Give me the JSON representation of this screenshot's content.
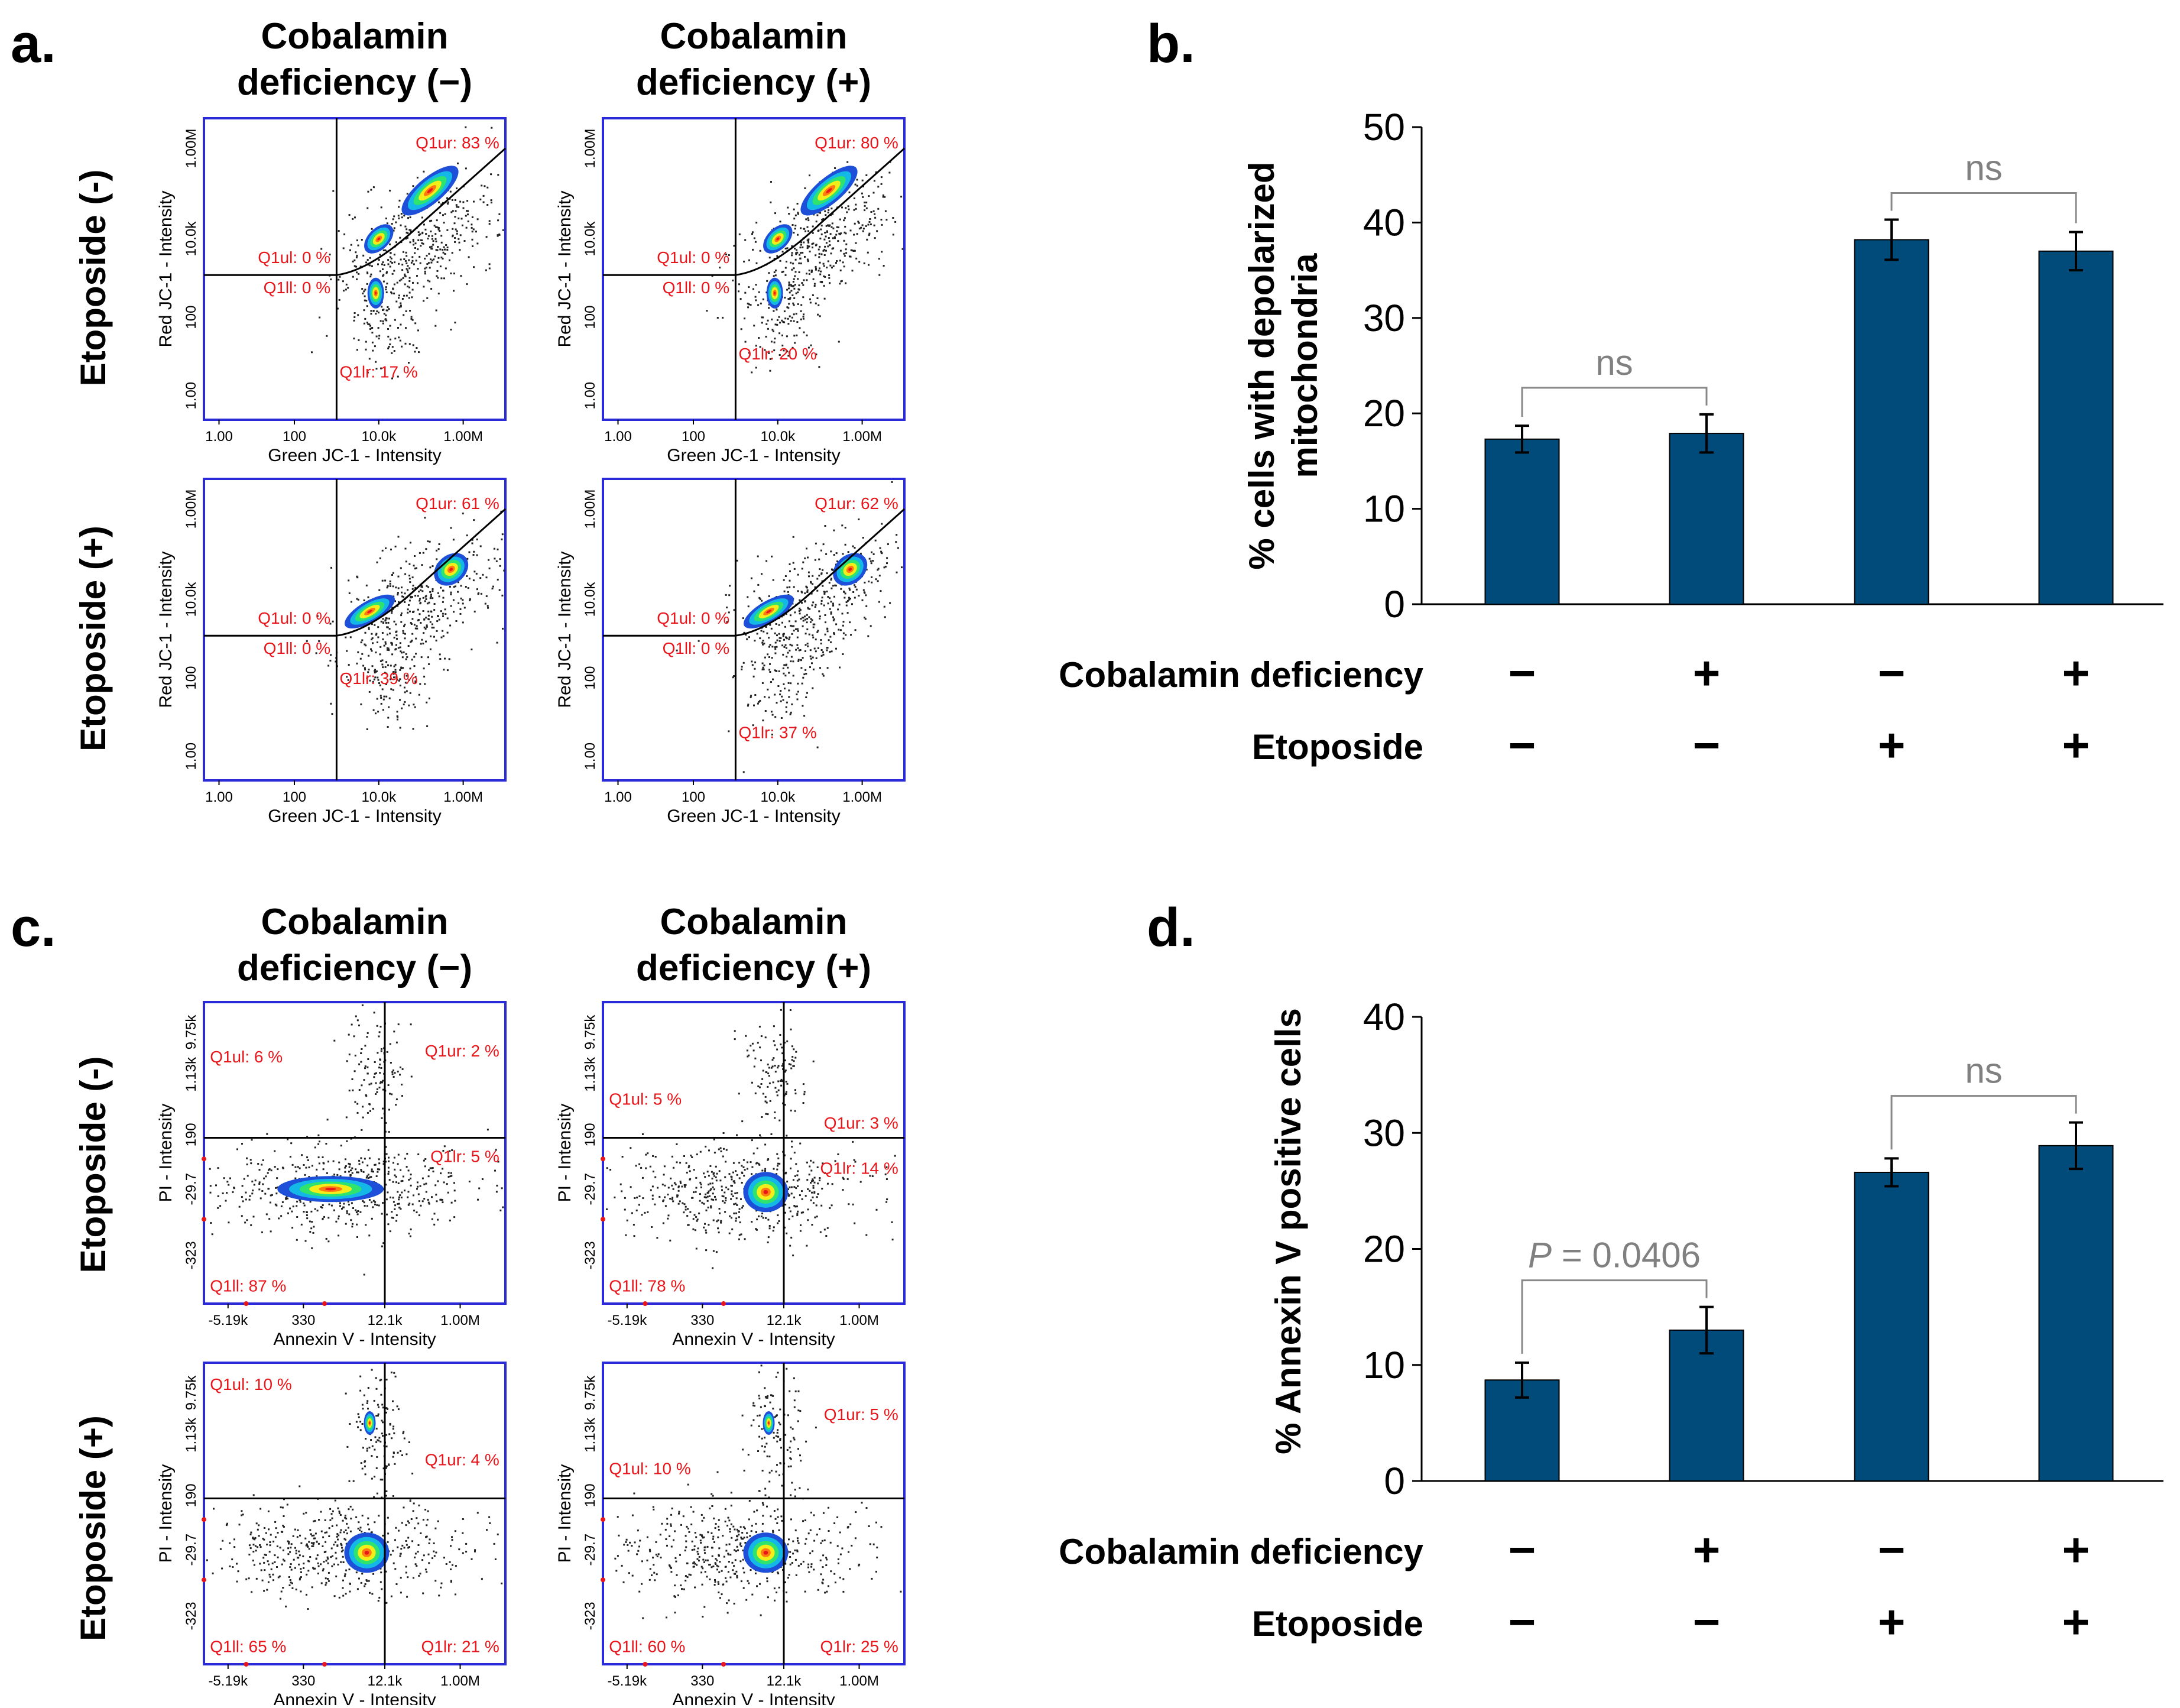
{
  "panel_letters": {
    "a": "a.",
    "b": "b.",
    "c": "c.",
    "d": "d."
  },
  "conditions": {
    "cobalamin_minus": [
      "Cobalamin",
      "deficiency (−)"
    ],
    "cobalamin_plus": [
      "Cobalamin",
      "deficiency (+)"
    ],
    "etoposide_minus": "Etoposide (-)",
    "etoposide_plus": "Etoposide (+)"
  },
  "jc1_axes": {
    "xlabel": "Green JC-1 - Intensity",
    "ylabel": "Red JC-1 - Intensity",
    "xticks": [
      "1.00",
      "100",
      "10.0k",
      "1.00M"
    ],
    "yticks": [
      "1.00",
      "100",
      "10.0k",
      "1.00M"
    ]
  },
  "annexin_axes": {
    "xlabel": "Annexin V - Intensity",
    "ylabel": "PI - Intensity",
    "xticks": [
      "-5.19k",
      "330",
      "12.1k",
      "1.00M"
    ],
    "yticks": [
      "-323",
      "-29.7",
      "190",
      "1.13k",
      "9.75k"
    ]
  },
  "jc1_plots": [
    {
      "ul": "Q1ul: 0 %",
      "ur": "Q1ur: 83 %",
      "ll": "Q1ll: 0 %",
      "lr": "Q1lr: 17 %"
    },
    {
      "ul": "Q1ul: 0 %",
      "ur": "Q1ur: 80 %",
      "ll": "Q1ll: 0 %",
      "lr": "Q1lr: 20 %"
    },
    {
      "ul": "Q1ul: 0 %",
      "ur": "Q1ur: 61 %",
      "ll": "Q1ll: 0 %",
      "lr": "Q1lr: 39 %"
    },
    {
      "ul": "Q1ul: 0 %",
      "ur": "Q1ur: 62 %",
      "ll": "Q1ll: 0 %",
      "lr": "Q1lr: 37 %"
    }
  ],
  "annexin_plots": [
    {
      "ul": "Q1ul: 6 %",
      "ur": "Q1ur: 2 %",
      "ll": "Q1ll: 87 %",
      "lr": "Q1lr: 5 %"
    },
    {
      "ul": "Q1ul: 5 %",
      "ur": "Q1ur: 3 %",
      "ll": "Q1ll: 78 %",
      "lr": "Q1lr: 14 %"
    },
    {
      "ul": "Q1ul: 10 %",
      "ur": "Q1ur: 4 %",
      "ll": "Q1ll: 65 %",
      "lr": "Q1lr: 21 %"
    },
    {
      "ul": "Q1ul: 10 %",
      "ur": "Q1ur: 5 %",
      "ll": "Q1ll: 60 %",
      "lr": "Q1lr: 25 %"
    }
  ],
  "treatment_table": {
    "row1_label": "Cobalamin deficiency",
    "row2_label": "Etoposide",
    "row1": [
      "−",
      "+",
      "−",
      "+"
    ],
    "row2": [
      "−",
      "−",
      "+",
      "+"
    ]
  },
  "chart_data": [
    {
      "type": "bar",
      "panel": "b",
      "ylabel": [
        "% cells with depolarized",
        "mitochondria"
      ],
      "categories": [
        "Cobalamin − / Etoposide −",
        "Cobalamin + / Etoposide −",
        "Cobalamin − / Etoposide +",
        "Cobalamin + / Etoposide +"
      ],
      "values": [
        17.3,
        17.9,
        38.2,
        37.0
      ],
      "errors": [
        1.4,
        2.0,
        2.1,
        2.0
      ],
      "ylim": [
        0,
        50
      ],
      "yticks": [
        "0",
        "10",
        "20",
        "30",
        "40",
        "50"
      ],
      "bar_color": "#004b7a",
      "annotations": [
        {
          "text": "ns",
          "from": 0,
          "to": 1
        },
        {
          "text": "ns",
          "from": 2,
          "to": 3
        }
      ]
    },
    {
      "type": "bar",
      "panel": "d",
      "ylabel": [
        "% Annexin V positive cells"
      ],
      "categories": [
        "Cobalamin − / Etoposide −",
        "Cobalamin + / Etoposide −",
        "Cobalamin − / Etoposide +",
        "Cobalamin + / Etoposide +"
      ],
      "values": [
        8.7,
        13.0,
        26.6,
        28.9
      ],
      "errors": [
        1.5,
        2.0,
        1.2,
        2.0
      ],
      "ylim": [
        0,
        40
      ],
      "yticks": [
        "0",
        "10",
        "20",
        "30",
        "40"
      ],
      "bar_color": "#004b7a",
      "annotations": [
        {
          "p_label": "P",
          "text": " = 0.0406",
          "from": 0,
          "to": 1
        },
        {
          "text": "ns",
          "from": 2,
          "to": 3
        }
      ]
    }
  ]
}
